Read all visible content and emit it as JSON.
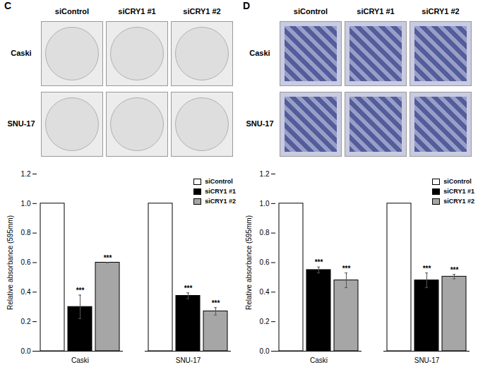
{
  "image_panels": [
    {
      "label": "C",
      "columns": [
        "siControl",
        "siCRY1 #1",
        "siCRY1 #2"
      ],
      "rows": [
        "Caski",
        "SNU-17"
      ]
    },
    {
      "label": "D",
      "columns": [
        "siControl",
        "siCRY1 #1",
        "siCRY1 #2"
      ],
      "rows": [
        "Caski",
        "SNU-17"
      ]
    }
  ],
  "chart_data": [
    {
      "type": "bar",
      "y_label": "Relative absorbance (595mm)",
      "categories": [
        "Caski",
        "SNU-17"
      ],
      "series": [
        {
          "name": "siControl",
          "color": "#ffffff",
          "values": [
            1.0,
            1.0
          ]
        },
        {
          "name": "siCRY1 #1",
          "color": "#000000",
          "values": [
            0.3,
            0.375
          ],
          "errors": [
            0.08,
            0.02
          ]
        },
        {
          "name": "siCRY1 #2",
          "color": "#a6a6a6",
          "values": [
            0.6,
            0.27
          ],
          "errors": [
            0.0,
            0.025
          ]
        }
      ],
      "annotations": [
        {
          "category": "Caski",
          "series": "siCRY1 #1",
          "text": "***"
        },
        {
          "category": "Caski",
          "series": "siCRY1 #2",
          "text": "***"
        },
        {
          "category": "SNU-17",
          "series": "siCRY1 #1",
          "text": "***"
        },
        {
          "category": "SNU-17",
          "series": "siCRY1 #2",
          "text": "***"
        }
      ],
      "ylim": [
        0,
        1.2
      ],
      "yticks": [
        {
          "value": 0,
          "label": "0.0"
        },
        {
          "value": 0.2,
          "label": "0.2"
        },
        {
          "value": 0.4,
          "label": "0.4"
        },
        {
          "value": 0.6,
          "label": "0.6"
        },
        {
          "value": 0.8,
          "label": "0.8"
        },
        {
          "value": 1.0,
          "label": "1.0"
        },
        {
          "value": 1.2,
          "label": "1.2"
        }
      ],
      "legend": "top-right",
      "grid": false
    },
    {
      "type": "bar",
      "y_label": "Relative absorbance (595mm)",
      "categories": [
        "Caski",
        "SNU-17"
      ],
      "series": [
        {
          "name": "siControl",
          "color": "#ffffff",
          "values": [
            1.0,
            1.0
          ]
        },
        {
          "name": "siCRY1 #1",
          "color": "#000000",
          "values": [
            0.55,
            0.48
          ],
          "errors": [
            0.02,
            0.05
          ]
        },
        {
          "name": "siCRY1 #2",
          "color": "#a6a6a6",
          "values": [
            0.48,
            0.505
          ],
          "errors": [
            0.05,
            0.015
          ]
        }
      ],
      "annotations": [
        {
          "category": "Caski",
          "series": "siCRY1 #1",
          "text": "***"
        },
        {
          "category": "Caski",
          "series": "siCRY1 #2",
          "text": "***"
        },
        {
          "category": "SNU-17",
          "series": "siCRY1 #1",
          "text": "***"
        },
        {
          "category": "SNU-17",
          "series": "siCRY1 #2",
          "text": "***"
        }
      ],
      "ylim": [
        0,
        1.2
      ],
      "yticks": [
        {
          "value": 0,
          "label": "0.0"
        },
        {
          "value": 0.2,
          "label": "0.2"
        },
        {
          "value": 0.4,
          "label": "0.4"
        },
        {
          "value": 0.6,
          "label": "0.6"
        },
        {
          "value": 0.8,
          "label": "0.8"
        },
        {
          "value": 1.0,
          "label": "1.0"
        },
        {
          "value": 1.2,
          "label": "1.2"
        }
      ],
      "legend": "top-right",
      "grid": false
    }
  ]
}
